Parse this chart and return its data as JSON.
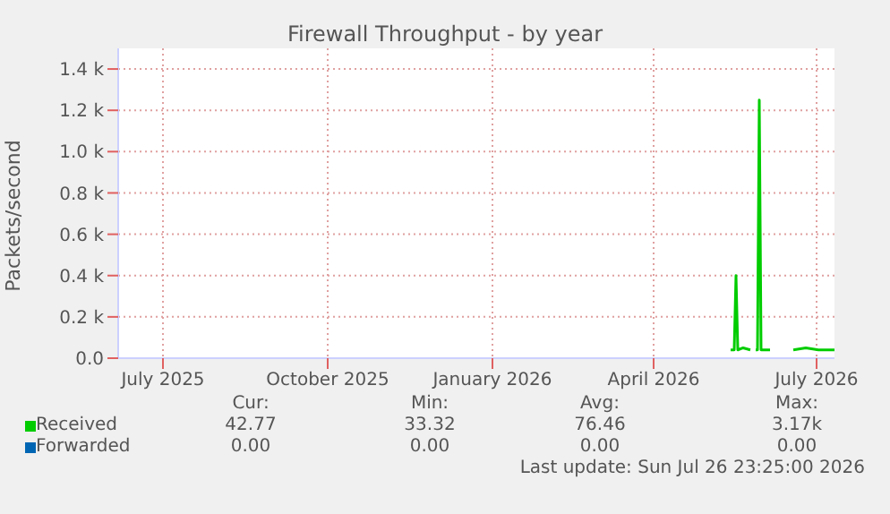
{
  "chart_data": {
    "type": "line",
    "title": "Firewall Throughput - by year",
    "ylabel": "Packets/second",
    "xlim": [
      "2025-06-06",
      "2026-07-11"
    ],
    "xticks": [
      {
        "value": "2025-07-01",
        "label": "July 2025"
      },
      {
        "value": "2025-10-01",
        "label": "October 2025"
      },
      {
        "value": "2026-01-01",
        "label": "January 2026"
      },
      {
        "value": "2026-04-01",
        "label": "April 2026"
      },
      {
        "value": "2026-07-01",
        "label": "July 2026"
      }
    ],
    "ylim": [
      0,
      1500
    ],
    "yticks": [
      {
        "value": 0,
        "label": "0.0"
      },
      {
        "value": 200,
        "label": "0.2 k"
      },
      {
        "value": 400,
        "label": "0.4 k"
      },
      {
        "value": 600,
        "label": "0.6 k"
      },
      {
        "value": 800,
        "label": "0.8 k"
      },
      {
        "value": 1000,
        "label": "1.0 k"
      },
      {
        "value": 1200,
        "label": "1.2 k"
      },
      {
        "value": 1400,
        "label": "1.4 k"
      }
    ],
    "series": [
      {
        "name": "Received",
        "color": "#00cc00",
        "x": [
          "2026-05-14",
          "2026-05-16",
          "2026-05-17",
          "2026-05-18",
          "2026-05-21",
          "2026-05-25",
          "2026-05-27",
          "2026-05-28",
          "2026-05-29",
          "2026-05-30",
          "2026-05-31",
          "2026-06-05",
          "2026-06-10",
          "2026-06-18",
          "2026-06-25",
          "2026-07-02",
          "2026-07-11"
        ],
        "values": [
          40,
          40,
          400,
          40,
          50,
          40,
          null,
          40,
          40,
          1250,
          40,
          40,
          null,
          40,
          50,
          40,
          40
        ]
      },
      {
        "name": "Forwarded",
        "color": "#0066b3"
      }
    ],
    "grid": true,
    "legend": "bottom",
    "marker": "none",
    "line_style": "solid",
    "annotations": [
      "Cur:",
      "Min:",
      "Avg:",
      "Max:",
      "42.77",
      "33.32",
      "76.46",
      "3.17k",
      "0.00",
      "0.00",
      "0.00",
      "0.00",
      "Last update: Sun Jul 26 23:25:00 2026"
    ]
  }
}
